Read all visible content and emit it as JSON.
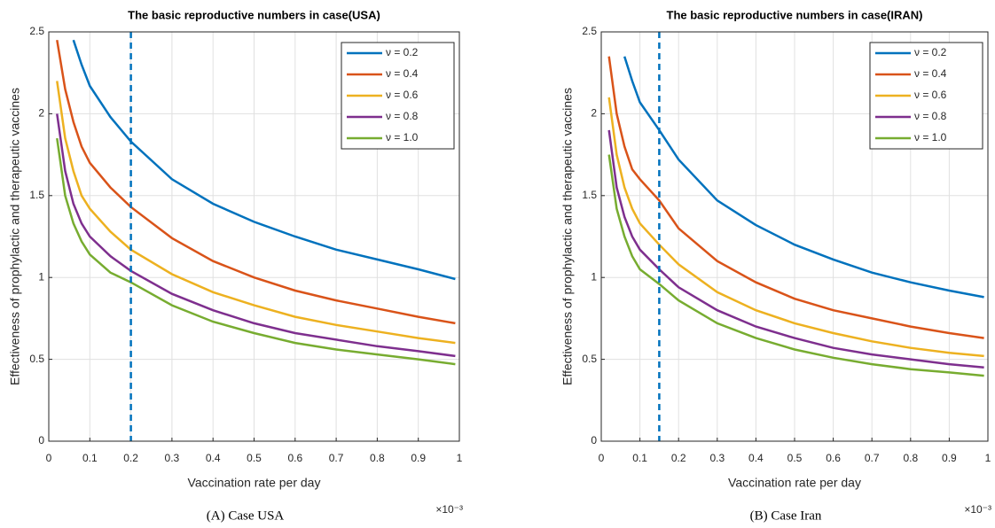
{
  "chart_data": [
    {
      "type": "line",
      "title": "The basic reproductive numbers in case(USA)",
      "xlabel": "Vaccination rate per day",
      "ylabel": "Effectiveness of prophylactic and therapeutic vaccines",
      "x_multiplier": "×10⁻³",
      "caption": "(A) Case USA",
      "x": [
        0.02,
        0.04,
        0.06,
        0.08,
        0.1,
        0.15,
        0.2,
        0.3,
        0.4,
        0.5,
        0.6,
        0.7,
        0.8,
        0.9,
        0.99
      ],
      "series": [
        {
          "name": "ν = 0.2",
          "color": "#0072bd",
          "values": [
            null,
            null,
            2.45,
            2.3,
            2.17,
            1.98,
            1.83,
            1.6,
            1.45,
            1.34,
            1.25,
            1.17,
            1.11,
            1.05,
            0.99
          ]
        },
        {
          "name": "ν = 0.4",
          "color": "#d95319",
          "values": [
            2.45,
            2.15,
            1.95,
            1.8,
            1.7,
            1.55,
            1.43,
            1.24,
            1.1,
            1.0,
            0.92,
            0.86,
            0.81,
            0.76,
            0.72
          ]
        },
        {
          "name": "ν = 0.6",
          "color": "#edb120",
          "values": [
            2.2,
            1.85,
            1.65,
            1.5,
            1.42,
            1.28,
            1.17,
            1.02,
            0.91,
            0.83,
            0.76,
            0.71,
            0.67,
            0.63,
            0.6
          ]
        },
        {
          "name": "ν = 0.8",
          "color": "#7e2f8e",
          "values": [
            2.0,
            1.65,
            1.45,
            1.33,
            1.25,
            1.13,
            1.04,
            0.9,
            0.8,
            0.72,
            0.66,
            0.62,
            0.58,
            0.55,
            0.52
          ]
        },
        {
          "name": "ν = 1.0",
          "color": "#77ac30",
          "values": [
            1.85,
            1.5,
            1.33,
            1.22,
            1.14,
            1.03,
            0.97,
            0.83,
            0.73,
            0.66,
            0.6,
            0.56,
            0.53,
            0.5,
            0.47
          ]
        }
      ],
      "vline": 0.2,
      "vline_color": "#0072bd",
      "xlim": [
        0,
        1
      ],
      "xticks": [
        0,
        0.1,
        0.2,
        0.3,
        0.4,
        0.5,
        0.6,
        0.7,
        0.8,
        0.9,
        1
      ],
      "ylim": [
        0,
        2.5
      ],
      "yticks": [
        0,
        0.5,
        1,
        1.5,
        2,
        2.5
      ],
      "grid": true,
      "legend": "top-right"
    },
    {
      "type": "line",
      "title": "The basic reproductive numbers in case(IRAN)",
      "xlabel": "Vaccination rate per day",
      "ylabel": "Effectiveness of prophylactic and therapeutic vaccines",
      "x_multiplier": "×10⁻³",
      "caption": "(B) Case Iran",
      "x": [
        0.02,
        0.04,
        0.06,
        0.08,
        0.1,
        0.15,
        0.2,
        0.3,
        0.4,
        0.5,
        0.6,
        0.7,
        0.8,
        0.9,
        0.99
      ],
      "series": [
        {
          "name": "ν = 0.2",
          "color": "#0072bd",
          "values": [
            null,
            null,
            2.35,
            2.2,
            2.07,
            1.9,
            1.72,
            1.47,
            1.32,
            1.2,
            1.11,
            1.03,
            0.97,
            0.92,
            0.88
          ]
        },
        {
          "name": "ν = 0.4",
          "color": "#d95319",
          "values": [
            2.35,
            2.0,
            1.8,
            1.66,
            1.6,
            1.47,
            1.3,
            1.1,
            0.97,
            0.87,
            0.8,
            0.75,
            0.7,
            0.66,
            0.63
          ]
        },
        {
          "name": "ν = 0.6",
          "color": "#edb120",
          "values": [
            2.1,
            1.75,
            1.55,
            1.42,
            1.33,
            1.2,
            1.08,
            0.91,
            0.8,
            0.72,
            0.66,
            0.61,
            0.57,
            0.54,
            0.52
          ]
        },
        {
          "name": "ν = 0.8",
          "color": "#7e2f8e",
          "values": [
            1.9,
            1.55,
            1.37,
            1.25,
            1.17,
            1.05,
            0.94,
            0.8,
            0.7,
            0.63,
            0.57,
            0.53,
            0.5,
            0.47,
            0.45
          ]
        },
        {
          "name": "ν = 1.0",
          "color": "#77ac30",
          "values": [
            1.75,
            1.42,
            1.25,
            1.13,
            1.05,
            0.96,
            0.86,
            0.72,
            0.63,
            0.56,
            0.51,
            0.47,
            0.44,
            0.42,
            0.4
          ]
        }
      ],
      "vline": 0.15,
      "vline_color": "#0072bd",
      "xlim": [
        0,
        1
      ],
      "xticks": [
        0,
        0.1,
        0.2,
        0.3,
        0.4,
        0.5,
        0.6,
        0.7,
        0.8,
        0.9,
        1
      ],
      "ylim": [
        0,
        2.5
      ],
      "yticks": [
        0,
        0.5,
        1,
        1.5,
        2,
        2.5
      ],
      "grid": true,
      "legend": "top-right"
    }
  ]
}
